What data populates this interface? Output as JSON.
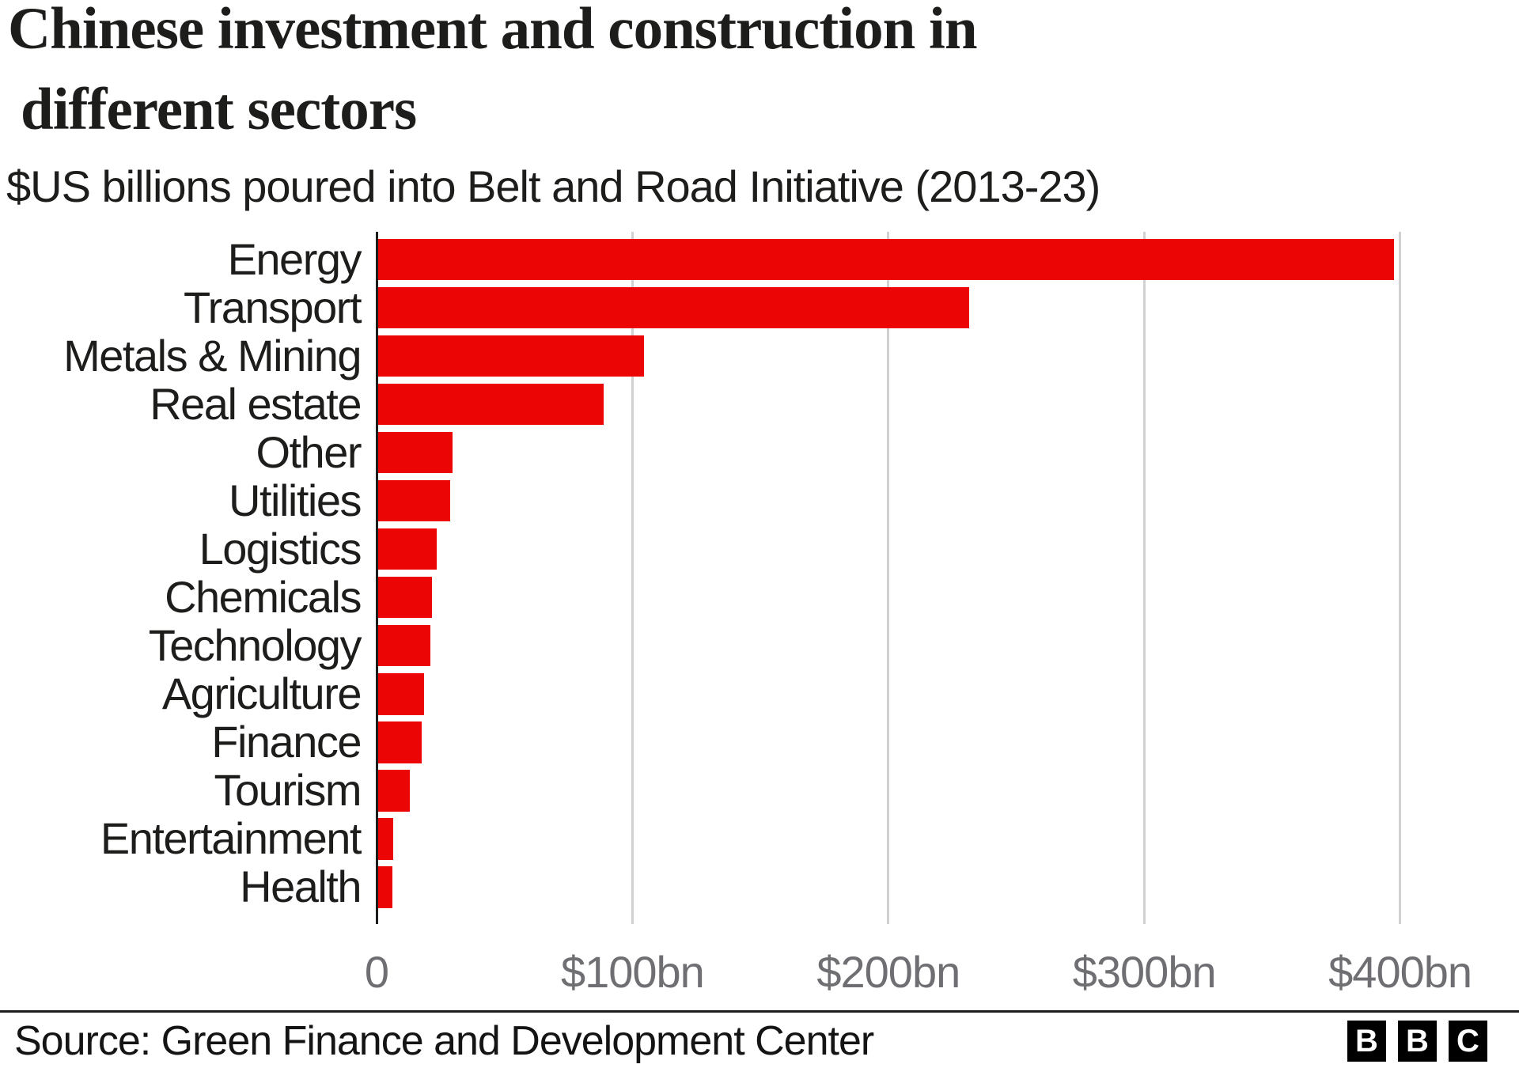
{
  "title": {
    "line1": "Chinese investment and construction in",
    "line2": "different sectors"
  },
  "subtitle": "$US billions poured into Belt and Road Initiative (2013-23)",
  "chart_data": {
    "type": "bar",
    "orientation": "horizontal",
    "title": "Chinese investment and construction in different sectors",
    "subtitle": "$US billions poured into Belt and Road Initiative (2013-23)",
    "unit": "$US billions",
    "categories": [
      "Energy",
      "Transport",
      "Metals & Mining",
      "Real estate",
      "Other",
      "Utilities",
      "Logistics",
      "Chemicals",
      "Technology",
      "Agriculture",
      "Finance",
      "Tourism",
      "Entertainment",
      "Health"
    ],
    "values": [
      397,
      231,
      104,
      88,
      29,
      28,
      23,
      21,
      20.5,
      18,
      17,
      12.5,
      6,
      5.5
    ],
    "xlim": [
      0,
      400
    ],
    "x_ticks": [
      {
        "value": 0,
        "label": "0"
      },
      {
        "value": 100,
        "label": "$100bn"
      },
      {
        "value": 200,
        "label": "$200bn"
      },
      {
        "value": 300,
        "label": "$300bn"
      },
      {
        "value": 400,
        "label": "$400bn"
      }
    ],
    "grid": "vertical",
    "legend": "none",
    "bar_color": "#eb0505",
    "axis_color": "#1d1d1b",
    "gridline_color": "#d1d1d1",
    "tick_label_color": "#6f6f73",
    "category_label_color": "#1d1d1b"
  },
  "footer": {
    "source": "Source: Green Finance and Development Center",
    "logo": {
      "name": "BBC",
      "letters": [
        "B",
        "B",
        "C"
      ]
    }
  }
}
